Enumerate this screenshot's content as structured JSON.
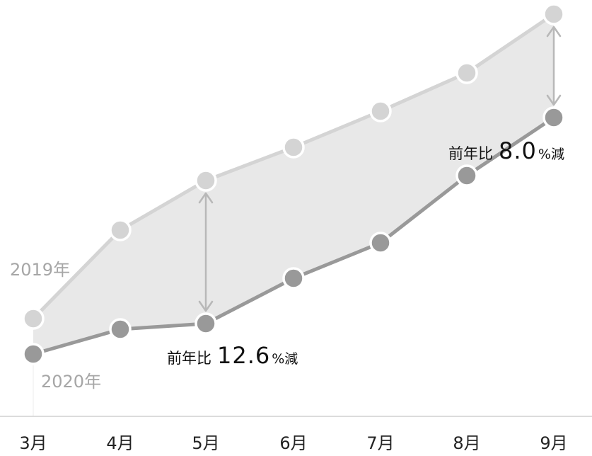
{
  "chart_data": {
    "type": "line",
    "categories": [
      "3月",
      "4月",
      "5月",
      "6月",
      "7月",
      "8月",
      "9月"
    ],
    "series": [
      {
        "name": "2019年",
        "values": [
          450,
          325,
          255,
          208,
          157,
          103,
          20
        ],
        "color": "#d4d4d4"
      },
      {
        "name": "2020年",
        "values": [
          500,
          465,
          457,
          393,
          343,
          248,
          166
        ],
        "color": "#999999"
      }
    ],
    "annotations": [
      {
        "prefix": "前年比",
        "value": "12.6",
        "suffix": "%減",
        "category": "5月"
      },
      {
        "prefix": "前年比",
        "value": "8.0",
        "suffix": "%減",
        "category": "9月"
      }
    ],
    "fill_color": "#e8e8e8",
    "arrow_color": "#b8b8b8",
    "axis_color": "#d0d0d0",
    "ylim": [
      0,
      600
    ],
    "y_axis_inverted": true,
    "grid": false,
    "legend": "none"
  }
}
